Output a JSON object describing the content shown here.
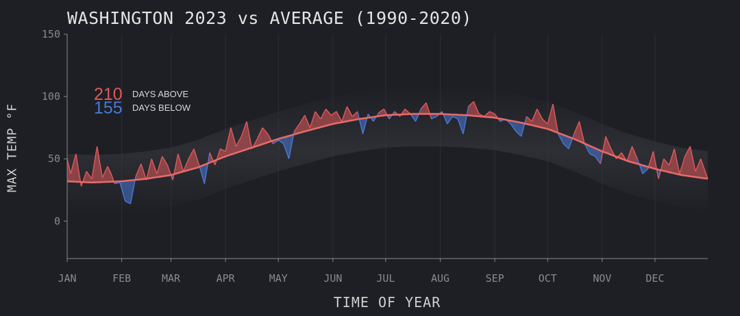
{
  "chart_data": {
    "type": "line",
    "title": "WASHINGTON 2023 vs AVERAGE (1990-2020)",
    "xlabel": "TIME OF YEAR",
    "ylabel": "MAX TEMP °F",
    "ylim": [
      -30,
      150
    ],
    "yticks": [
      0,
      50,
      100,
      150
    ],
    "xlim": [
      1,
      365
    ],
    "xticks": [
      {
        "day": 1,
        "label": "JAN"
      },
      {
        "day": 32,
        "label": "FEB"
      },
      {
        "day": 60,
        "label": "MAR"
      },
      {
        "day": 91,
        "label": "APR"
      },
      {
        "day": 121,
        "label": "MAY"
      },
      {
        "day": 152,
        "label": "JUN"
      },
      {
        "day": 182,
        "label": "JUL"
      },
      {
        "day": 213,
        "label": "AUG"
      },
      {
        "day": 244,
        "label": "SEP"
      },
      {
        "day": 274,
        "label": "OCT"
      },
      {
        "day": 305,
        "label": "NOV"
      },
      {
        "day": 335,
        "label": "DEC"
      }
    ],
    "grid": "vertical-at-month-ticks",
    "legend": {
      "position": "top-left",
      "entries": [
        {
          "count": "210",
          "label": "DAYS ABOVE",
          "color": "#e0595b"
        },
        {
          "count": "155",
          "label": "DAYS BELOW",
          "color": "#4a78d6"
        }
      ]
    },
    "colors": {
      "above": "#e0595b",
      "below": "#4a78d6",
      "average": "#e86a6a"
    },
    "series": [
      {
        "name": "Average",
        "x": [
          1,
          15,
          32,
          46,
          60,
          75,
          91,
          106,
          121,
          136,
          152,
          167,
          182,
          197,
          213,
          228,
          244,
          259,
          274,
          289,
          305,
          320,
          335,
          350,
          365
        ],
        "values": [
          32,
          31,
          32,
          34,
          37,
          43,
          52,
          59,
          66,
          72,
          78,
          82,
          85,
          86,
          86,
          85,
          83,
          79,
          74,
          66,
          56,
          48,
          42,
          37,
          34
        ]
      },
      {
        "name": "2023",
        "x": [
          1,
          3,
          6,
          9,
          12,
          15,
          18,
          21,
          24,
          26,
          28,
          31,
          34,
          37,
          40,
          43,
          46,
          49,
          52,
          55,
          58,
          61,
          64,
          67,
          70,
          73,
          76,
          79,
          82,
          85,
          88,
          91,
          94,
          97,
          100,
          103,
          106,
          109,
          112,
          115,
          118,
          121,
          124,
          127,
          130,
          133,
          136,
          139,
          142,
          145,
          148,
          151,
          154,
          157,
          160,
          163,
          166,
          169,
          172,
          175,
          178,
          181,
          184,
          187,
          190,
          193,
          196,
          199,
          202,
          205,
          208,
          211,
          214,
          217,
          220,
          223,
          226,
          229,
          232,
          235,
          238,
          241,
          244,
          247,
          250,
          253,
          256,
          259,
          262,
          265,
          268,
          271,
          274,
          277,
          280,
          283,
          286,
          289,
          292,
          295,
          298,
          301,
          304,
          307,
          310,
          313,
          316,
          319,
          322,
          325,
          328,
          331,
          334,
          337,
          340,
          343,
          346,
          349,
          352,
          355,
          358,
          361,
          365
        ],
        "values": [
          50,
          38,
          54,
          28,
          40,
          34,
          60,
          35,
          44,
          38,
          30,
          31,
          16,
          14,
          36,
          46,
          33,
          50,
          38,
          52,
          45,
          33,
          54,
          40,
          50,
          58,
          45,
          30,
          55,
          45,
          58,
          56,
          75,
          60,
          68,
          80,
          58,
          66,
          75,
          70,
          62,
          65,
          62,
          50,
          72,
          78,
          85,
          75,
          88,
          82,
          90,
          85,
          88,
          80,
          92,
          84,
          88,
          70,
          86,
          80,
          87,
          90,
          82,
          88,
          84,
          90,
          86,
          80,
          90,
          95,
          82,
          84,
          88,
          78,
          84,
          82,
          70,
          92,
          96,
          86,
          84,
          88,
          86,
          80,
          82,
          78,
          72,
          68,
          84,
          80,
          90,
          82,
          78,
          94,
          70,
          62,
          58,
          70,
          80,
          62,
          54,
          52,
          46,
          68,
          58,
          50,
          55,
          48,
          60,
          50,
          38,
          42,
          56,
          34,
          50,
          45,
          58,
          38,
          52,
          60,
          40,
          50,
          34
        ]
      }
    ]
  }
}
